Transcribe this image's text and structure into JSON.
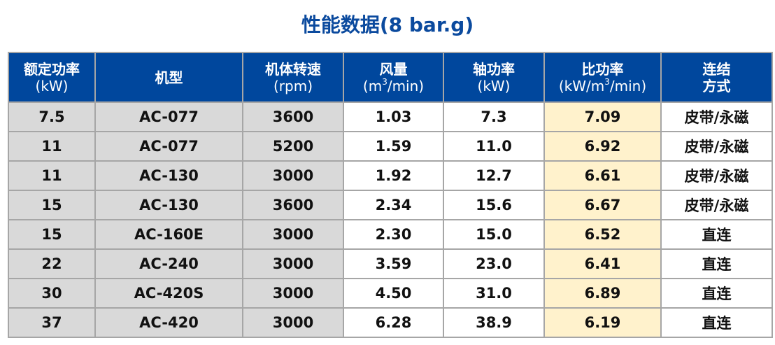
{
  "title": "性能数据(8 bar.g)",
  "headers": [
    {
      "main": "额定功率",
      "unit": "(kW)"
    },
    {
      "main": "机型",
      "unit": ""
    },
    {
      "main": "机体转速",
      "unit": "(rpm)"
    },
    {
      "main": "风量",
      "unit_pre": "(m",
      "unit_sup": "3",
      "unit_post": "/min)"
    },
    {
      "main": "轴功率",
      "unit": "(kW)"
    },
    {
      "main": "比功率",
      "unit_pre": "(kW/m",
      "unit_sup": "3",
      "unit_post": "/min)"
    },
    {
      "main": "连结",
      "unit": "方式"
    }
  ],
  "rows": [
    [
      "7.5",
      "AC-077",
      "3600",
      "1.03",
      "7.3",
      "7.09",
      "皮带/永磁"
    ],
    [
      "11",
      "AC-077",
      "5200",
      "1.59",
      "11.0",
      "6.92",
      "皮带/永磁"
    ],
    [
      "11",
      "AC-130",
      "3000",
      "1.92",
      "12.7",
      "6.61",
      "皮带/永磁"
    ],
    [
      "15",
      "AC-130",
      "3600",
      "2.34",
      "15.6",
      "6.67",
      "皮带/永磁"
    ],
    [
      "15",
      "AC-160E",
      "3000",
      "2.30",
      "15.0",
      "6.52",
      "直连"
    ],
    [
      "22",
      "AC-240",
      "3000",
      "3.59",
      "23.0",
      "6.41",
      "直连"
    ],
    [
      "30",
      "AC-420S",
      "3000",
      "4.50",
      "31.0",
      "6.89",
      "直连"
    ],
    [
      "37",
      "AC-420",
      "3000",
      "6.28",
      "38.9",
      "6.19",
      "直连"
    ]
  ],
  "colors": {
    "header": "#00479d",
    "title": "#0b4a9e",
    "grey": "#d9d9d9",
    "highlight": "#fff2cc"
  }
}
